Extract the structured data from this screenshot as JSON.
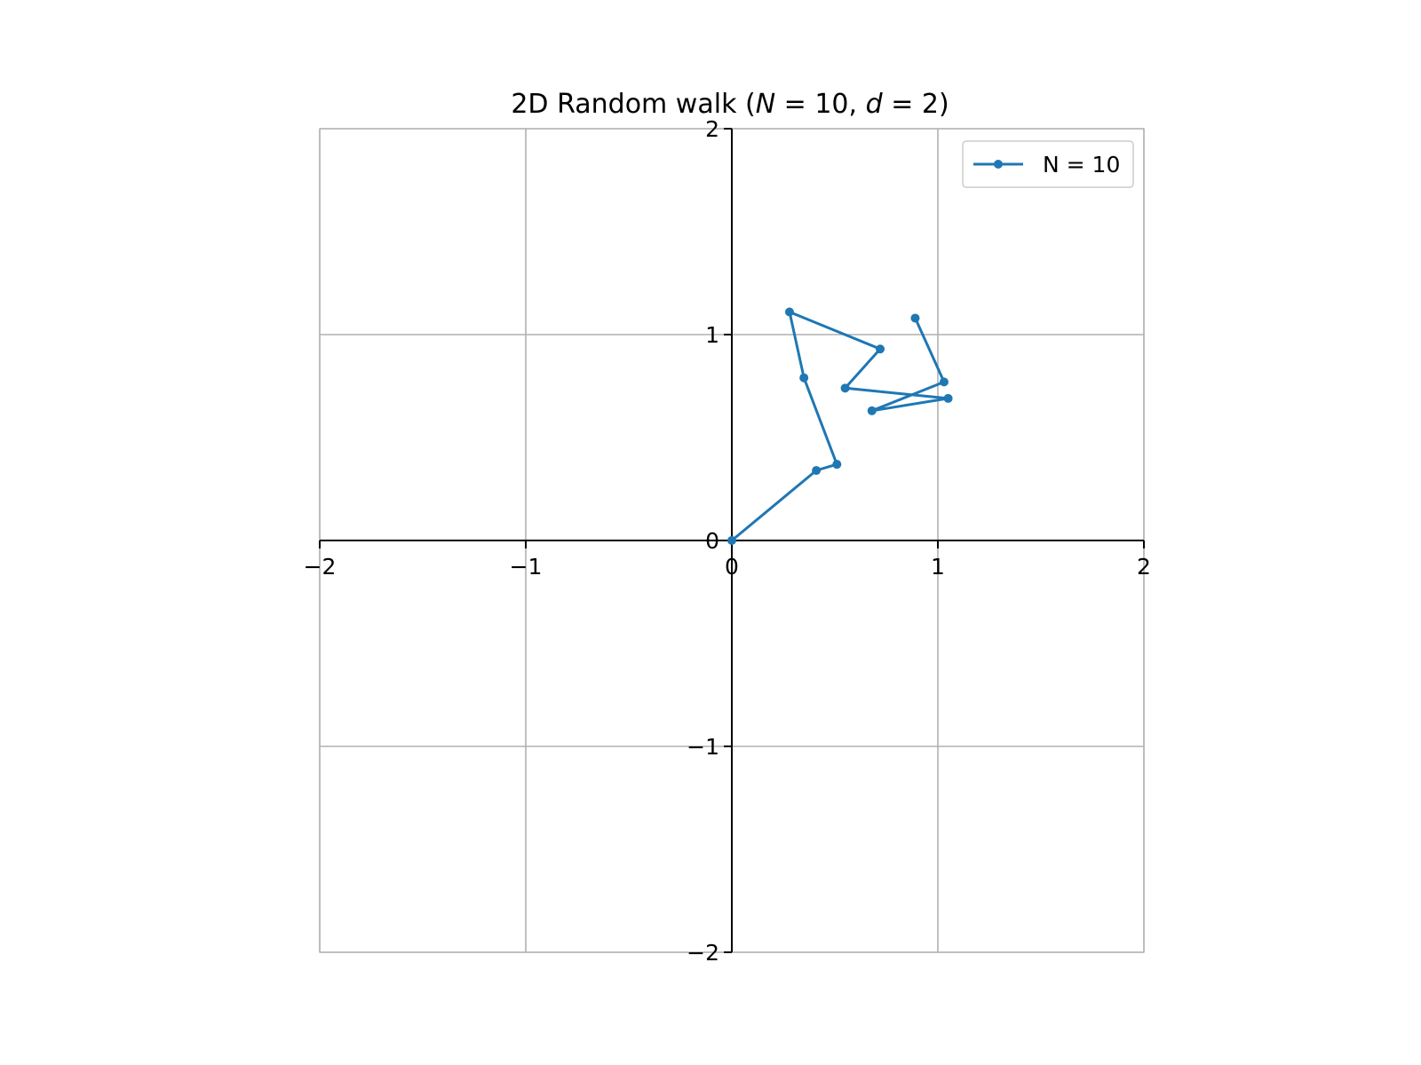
{
  "chart_data": {
    "type": "line",
    "title": {
      "prefix": "2D Random walk (",
      "var1": "N",
      "eq1": " = 10, ",
      "var2": "d",
      "eq2": " = 2)"
    },
    "xlabel": "",
    "ylabel": "",
    "xlim": [
      -2,
      2
    ],
    "ylim": [
      -2,
      2
    ],
    "xticks": [
      -2,
      -1,
      0,
      1,
      2
    ],
    "yticks": [
      -2,
      -1,
      0,
      1,
      2
    ],
    "xtick_labels": [
      "−2",
      "−1",
      "0",
      "1",
      "2"
    ],
    "ytick_labels": [
      "−2",
      "−1",
      "0",
      "1",
      "2"
    ],
    "grid": true,
    "spines": "centered at origin",
    "legend_position": "upper right",
    "series": [
      {
        "name": "N = 10",
        "color": "#1f77b4",
        "marker": "circle",
        "x": [
          0.0,
          0.41,
          0.51,
          0.35,
          0.28,
          0.72,
          0.55,
          1.05,
          0.68,
          1.03,
          0.89
        ],
        "y": [
          0.0,
          0.34,
          0.37,
          0.79,
          1.11,
          0.93,
          0.74,
          0.69,
          0.63,
          0.77,
          1.08
        ]
      }
    ]
  }
}
